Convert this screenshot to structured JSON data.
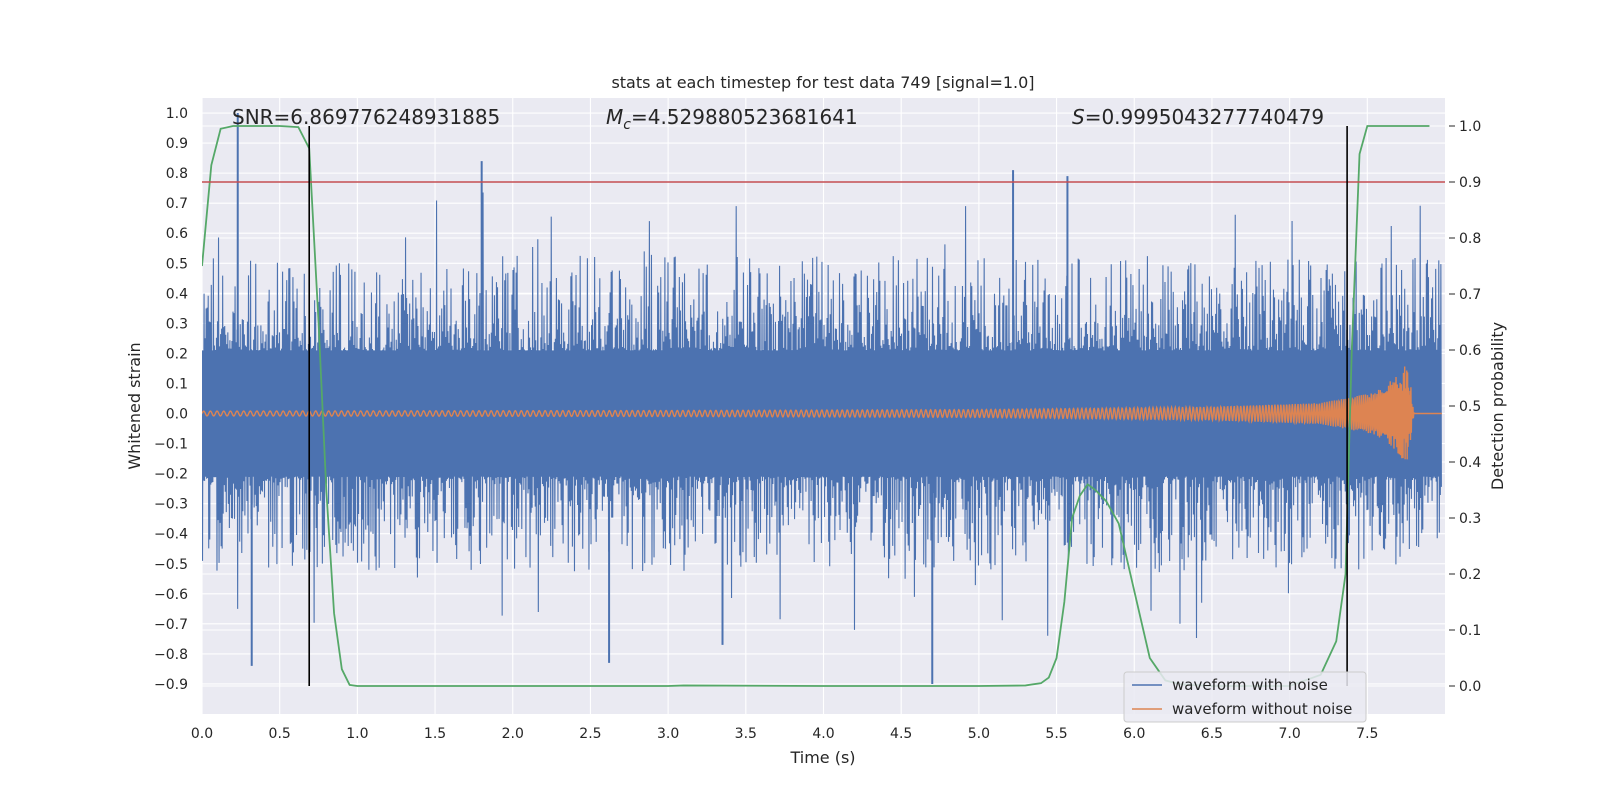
{
  "chart_data": {
    "type": "line",
    "title": "stats at each timestep for test data 749 [signal=1.0]",
    "xlabel": "Time (s)",
    "ylabel": "Whitened strain",
    "y2label": "Detection probability",
    "xlim": [
      0.0,
      8.0
    ],
    "ylim": [
      -1.0,
      1.05
    ],
    "y2lim": [
      -0.05,
      1.05
    ],
    "xticks": [
      0.0,
      0.5,
      1.0,
      1.5,
      2.0,
      2.5,
      3.0,
      3.5,
      4.0,
      4.5,
      5.0,
      5.5,
      6.0,
      6.5,
      7.0,
      7.5
    ],
    "yticks": [
      -0.9,
      -0.8,
      -0.7,
      -0.6,
      -0.5,
      -0.4,
      -0.3,
      -0.2,
      -0.1,
      0.0,
      0.1,
      0.2,
      0.3,
      0.4,
      0.5,
      0.6,
      0.7,
      0.8,
      0.9,
      1.0
    ],
    "y2ticks": [
      0.0,
      0.1,
      0.2,
      0.3,
      0.4,
      0.5,
      0.6,
      0.7,
      0.8,
      0.9,
      1.0
    ],
    "annotations": {
      "snr_label": "SNR=6.869776248931885",
      "mc_symbol": "M",
      "mc_subscript": "c",
      "mc_value": "=4.529880523681641",
      "s_symbol": "S",
      "s_value": "=0.9995043277740479"
    },
    "threshold": {
      "y2": 0.9,
      "color": "#c44e52"
    },
    "vertical_lines": [
      0.69,
      7.37
    ],
    "series": [
      {
        "name": "waveform with noise",
        "color": "#4c72b0",
        "description_values": {
          "typical_amplitude": 0.35,
          "spikes": [
            [
              0.23,
              1.0
            ],
            [
              0.32,
              -0.84
            ],
            [
              1.8,
              0.84
            ],
            [
              2.62,
              -0.83
            ],
            [
              4.7,
              -0.9
            ],
            [
              5.22,
              0.81
            ],
            [
              5.57,
              0.79
            ],
            [
              3.35,
              -0.77
            ]
          ]
        }
      },
      {
        "name": "waveform without noise",
        "color": "#dd8452",
        "envelope": {
          "x": [
            0.0,
            3.0,
            5.0,
            6.5,
            7.2,
            7.55,
            7.68,
            7.75,
            7.78,
            7.8,
            8.0
          ],
          "amp": [
            0.008,
            0.01,
            0.013,
            0.022,
            0.035,
            0.07,
            0.12,
            0.17,
            0.09,
            0.0,
            0.0
          ]
        }
      },
      {
        "name": "detection probability",
        "color": "#55a868",
        "axis": "y2",
        "x": [
          0.0,
          0.06,
          0.12,
          0.2,
          0.3,
          0.5,
          0.62,
          0.69,
          0.75,
          0.8,
          0.85,
          0.9,
          0.95,
          1.0,
          2.0,
          3.0,
          3.1,
          4.0,
          5.0,
          5.3,
          5.4,
          5.45,
          5.5,
          5.55,
          5.6,
          5.65,
          5.7,
          5.75,
          5.82,
          5.9,
          6.0,
          6.1,
          6.2,
          6.3,
          6.5,
          7.0,
          7.2,
          7.3,
          7.36,
          7.4,
          7.45,
          7.5,
          7.6,
          7.7,
          7.9
        ],
        "y": [
          0.75,
          0.93,
          0.995,
          1.0,
          1.0,
          1.0,
          0.998,
          0.96,
          0.65,
          0.35,
          0.13,
          0.03,
          0.002,
          0.0,
          0.0,
          0.0,
          0.001,
          0.0,
          0.0,
          0.001,
          0.005,
          0.015,
          0.05,
          0.15,
          0.3,
          0.34,
          0.36,
          0.35,
          0.33,
          0.29,
          0.17,
          0.05,
          0.01,
          0.003,
          0.0,
          0.0,
          0.02,
          0.08,
          0.2,
          0.6,
          0.95,
          1.0,
          1.0,
          1.0,
          1.0
        ]
      }
    ],
    "legend": {
      "position": "lower-right",
      "entries": [
        {
          "label": "waveform with noise",
          "color": "#4c72b0"
        },
        {
          "label": "waveform without noise",
          "color": "#dd8452"
        }
      ]
    }
  }
}
